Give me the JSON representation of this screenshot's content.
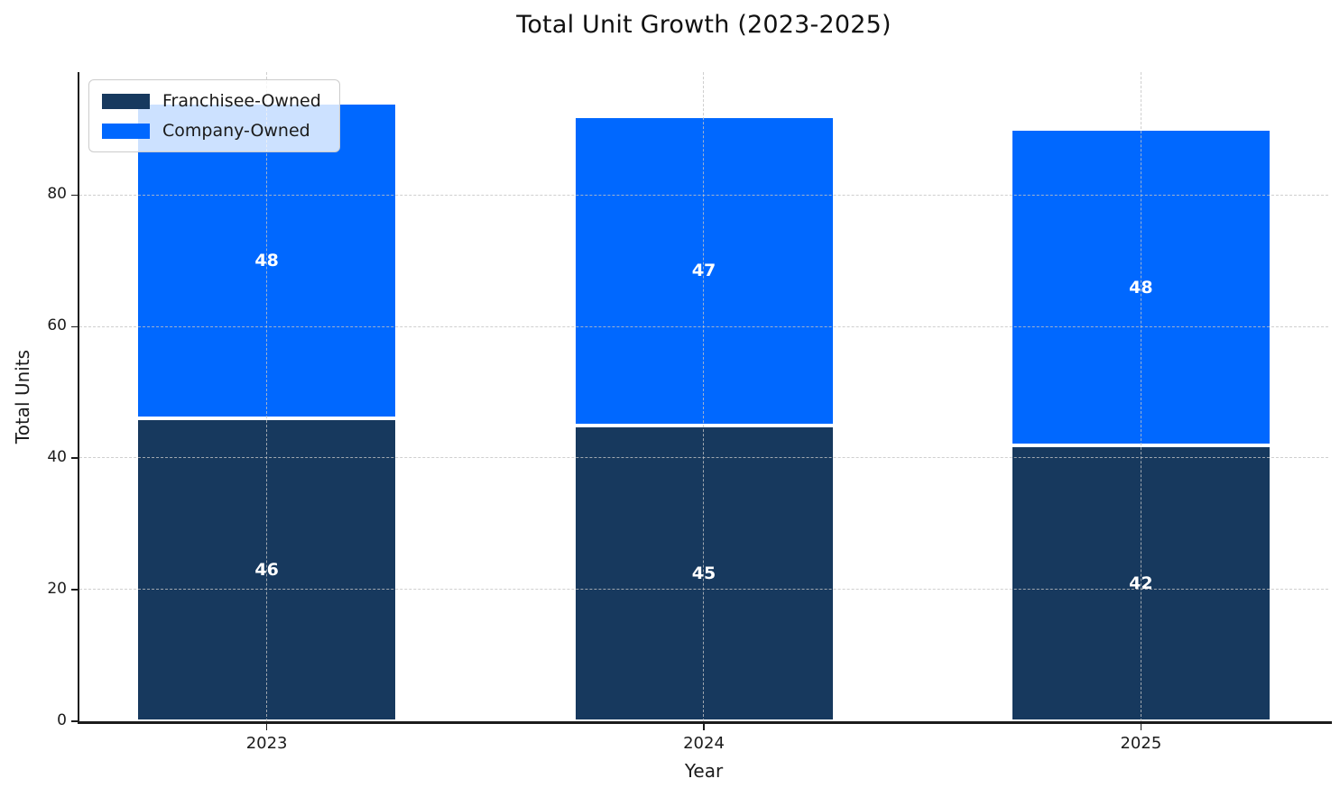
{
  "chart_data": {
    "type": "bar",
    "stacked": true,
    "title": "Total Unit Growth (2023-2025)",
    "xlabel": "Year",
    "ylabel": "Total Units",
    "categories": [
      "2023",
      "2024",
      "2025"
    ],
    "series": [
      {
        "name": "Franchisee-Owned",
        "color": "#17395E",
        "values": [
          46,
          45,
          42
        ]
      },
      {
        "name": "Company-Owned",
        "color": "#0068FF",
        "values": [
          48,
          47,
          48
        ]
      }
    ],
    "yticks": [
      0,
      20,
      40,
      60,
      80
    ],
    "ylim": [
      0,
      98.7
    ],
    "grid": {
      "visible": true,
      "style": "dashed",
      "color": "#c3c3c3",
      "axes": "both"
    },
    "legend": {
      "position": "upper left",
      "entries": [
        "Franchisee-Owned",
        "Company-Owned"
      ]
    },
    "axis_color": "#1c1c1c",
    "bar_edge_color": "#ffffff",
    "value_label_color": "#ffffff"
  }
}
